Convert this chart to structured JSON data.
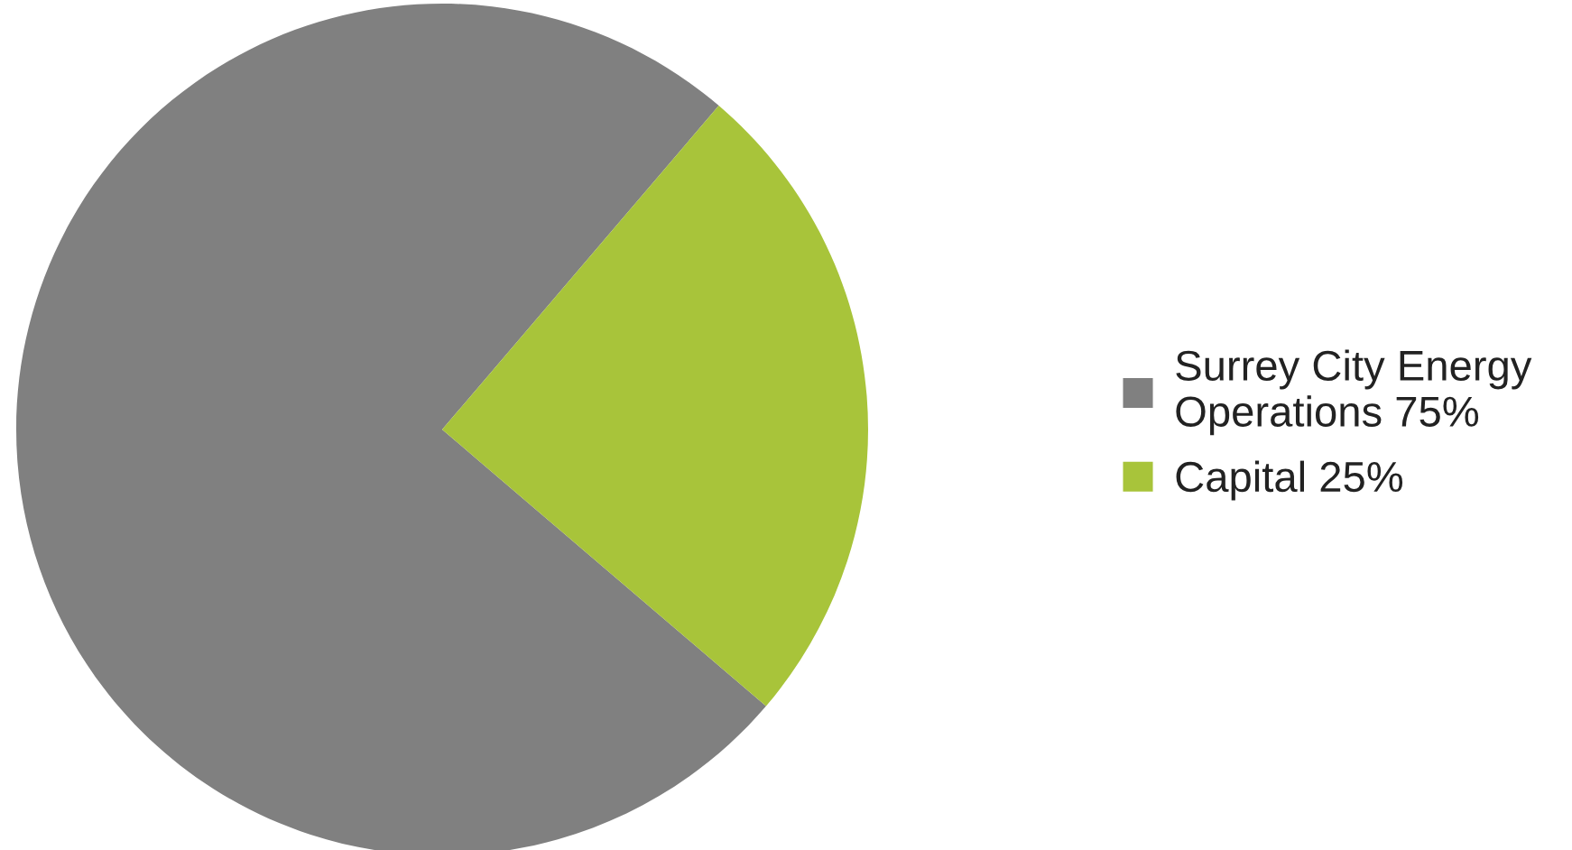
{
  "chart_data": {
    "type": "pie",
    "categories": [
      "Surrey City Energy\nOperations 75%",
      "Capital 25%"
    ],
    "values": [
      75,
      25
    ],
    "colors": [
      "#808080",
      "#a8c43a"
    ],
    "legend": "right"
  }
}
